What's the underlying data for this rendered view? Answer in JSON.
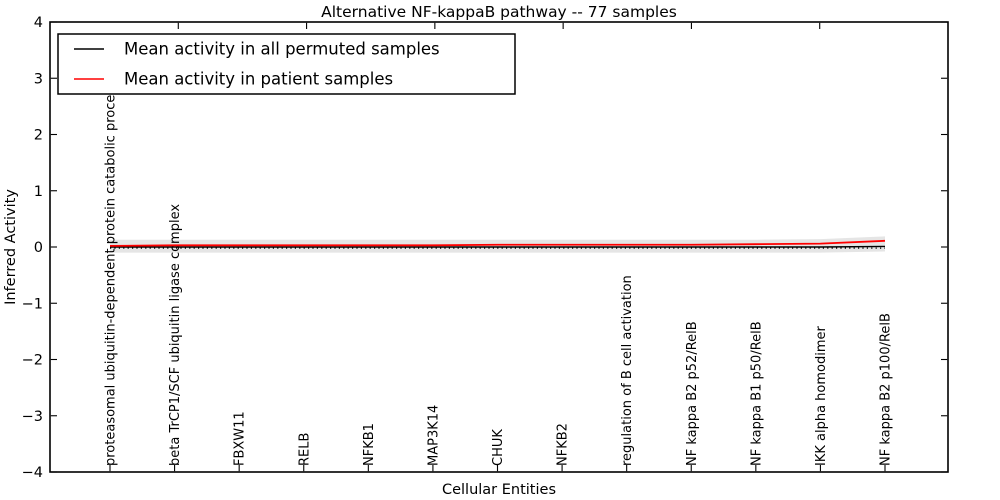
{
  "title": "Alternative NF-kappaB pathway -- 77 samples",
  "legend": {
    "items": [
      {
        "label": "Mean activity in all permuted samples",
        "color": "#000000"
      },
      {
        "label": "Mean activity in patient samples",
        "color": "#ff0000"
      }
    ]
  },
  "chart_data": {
    "type": "line",
    "title": "Alternative NF-kappaB pathway -- 77 samples",
    "xlabel": "Cellular Entities",
    "ylabel": "Inferred Activity",
    "ylim": [
      -4,
      4
    ],
    "yticks": [
      4,
      3,
      2,
      1,
      0,
      -1,
      -2,
      -3,
      -4
    ],
    "grid": false,
    "legend_position": "upper left",
    "categories": [
      "proteasomal ubiquitin-dependent protein catabolic process",
      "beta TrCP1/SCF ubiquitin ligase complex",
      "FBXW11",
      "RELB",
      "NFKB1",
      "MAP3K14",
      "CHUK",
      "NFKB2",
      "regulation of B cell activation",
      "NF kappa B2 p52/RelB",
      "NF kappa B1 p50/RelB",
      "IKK alpha homodimer",
      "NF kappa B2 p100/RelB"
    ],
    "series": [
      {
        "name": "Mean activity in all permuted samples",
        "color": "#000000",
        "style": "solid",
        "width": 1.4,
        "values": [
          0.0,
          0.0,
          0.0,
          0.0,
          0.0,
          0.0,
          0.0,
          0.0,
          0.0,
          0.0,
          0.0,
          0.0,
          0.01
        ]
      },
      {
        "name": "zero reference line",
        "color": "#000000",
        "style": "dotted",
        "width": 1.2,
        "values": [
          -0.02,
          -0.02,
          -0.02,
          -0.02,
          -0.02,
          -0.02,
          -0.02,
          -0.02,
          -0.02,
          -0.02,
          -0.02,
          -0.02,
          -0.02
        ]
      },
      {
        "name": "Mean activity in patient samples",
        "color": "#ff0000",
        "style": "solid",
        "width": 1.8,
        "values": [
          0.02,
          0.03,
          0.03,
          0.03,
          0.03,
          0.03,
          0.04,
          0.04,
          0.04,
          0.04,
          0.05,
          0.06,
          0.11
        ]
      }
    ],
    "band": {
      "name": "permuted samples activity range",
      "color": "#dcdcdc",
      "opacity": 0.75,
      "top": [
        0.13,
        0.13,
        0.13,
        0.13,
        0.13,
        0.13,
        0.13,
        0.13,
        0.13,
        0.13,
        0.13,
        0.14,
        0.19
      ],
      "bottom": [
        -0.1,
        -0.1,
        -0.1,
        -0.1,
        -0.1,
        -0.1,
        -0.1,
        -0.1,
        -0.1,
        -0.1,
        -0.1,
        -0.1,
        -0.08
      ]
    }
  }
}
